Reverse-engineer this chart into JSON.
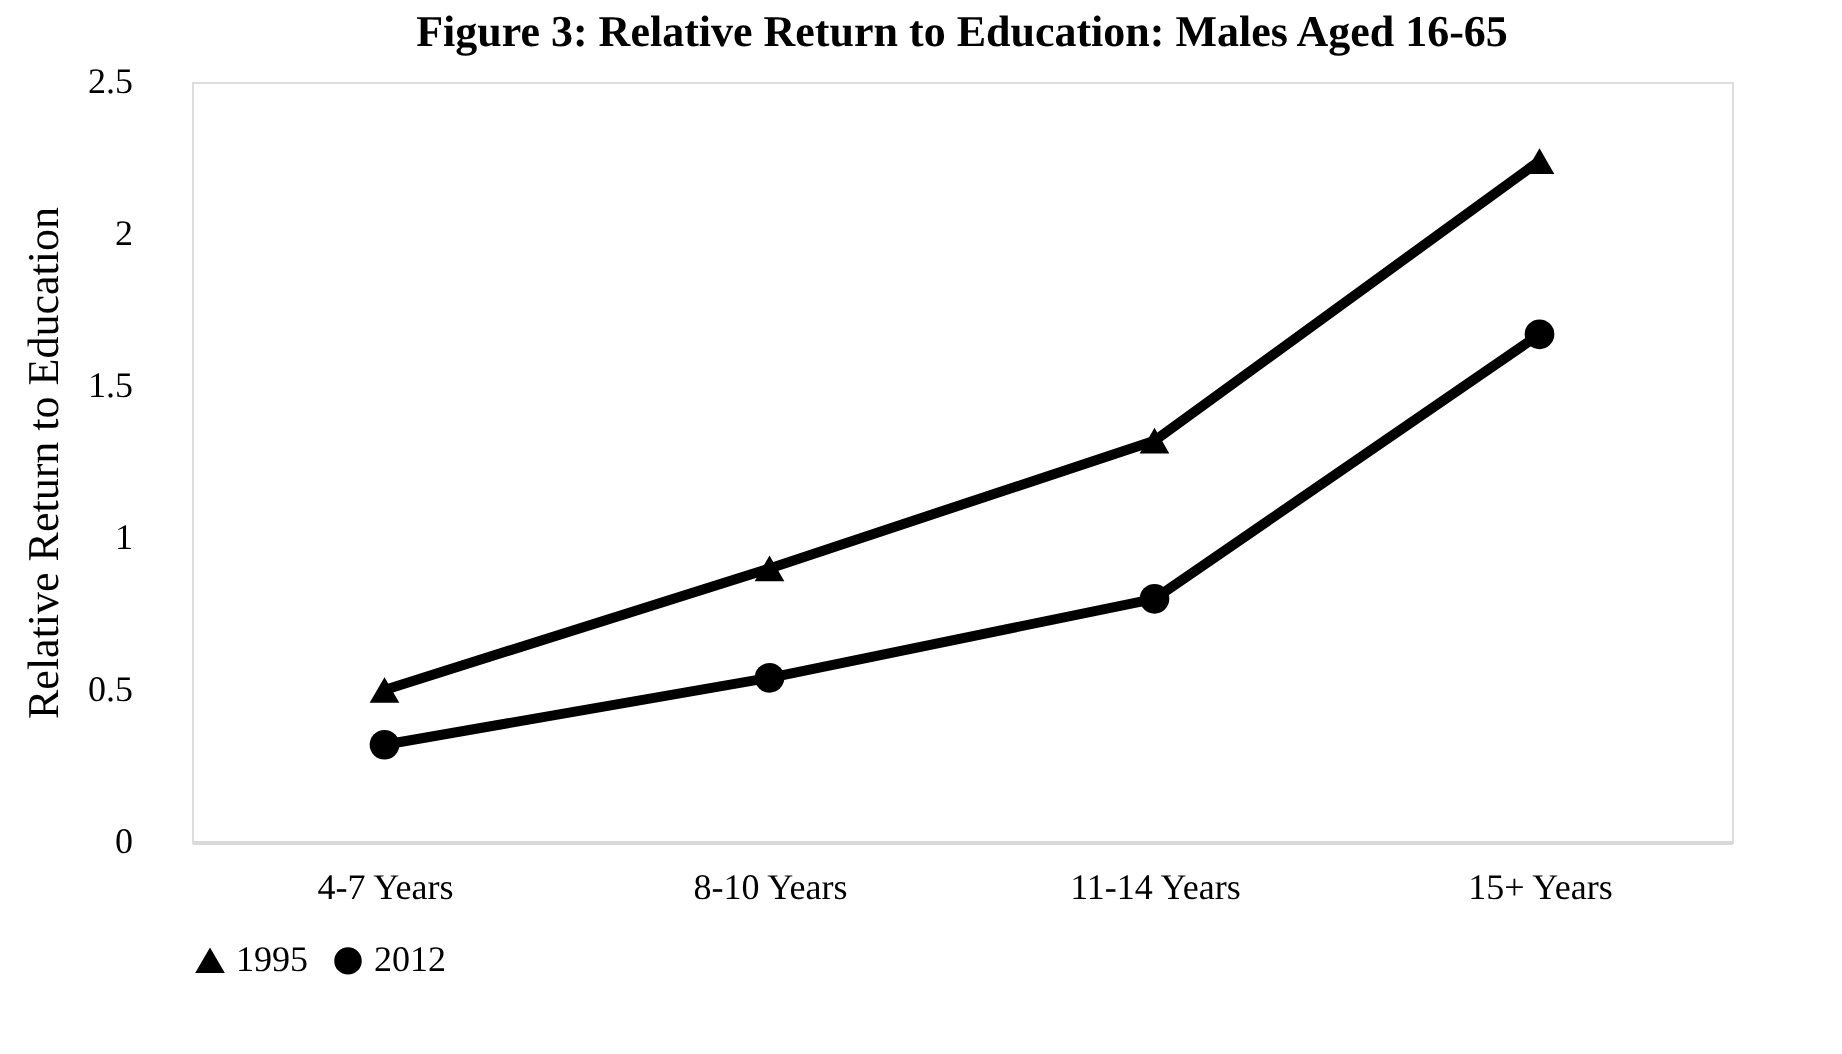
{
  "chart_data": {
    "type": "line",
    "title": "Figure 3: Relative Return to Education: Males Aged 16-65",
    "ylabel": "Relative Return to Education",
    "categories": [
      "4-7 Years",
      "8-10 Years",
      "11-14 Years",
      "15+ Years"
    ],
    "series": [
      {
        "name": "1995",
        "color": "#000000",
        "marker": "triangle",
        "values": [
          0.5,
          0.9,
          1.32,
          2.24
        ]
      },
      {
        "name": "2012",
        "color": "#000000",
        "marker": "circle",
        "values": [
          0.32,
          0.54,
          0.8,
          1.67
        ]
      }
    ],
    "ylim": [
      0,
      2.5
    ],
    "yticks": [
      0,
      0.5,
      1,
      1.5,
      2,
      2.5
    ],
    "grid": false,
    "legend": "bottom",
    "line_style": "solid"
  }
}
